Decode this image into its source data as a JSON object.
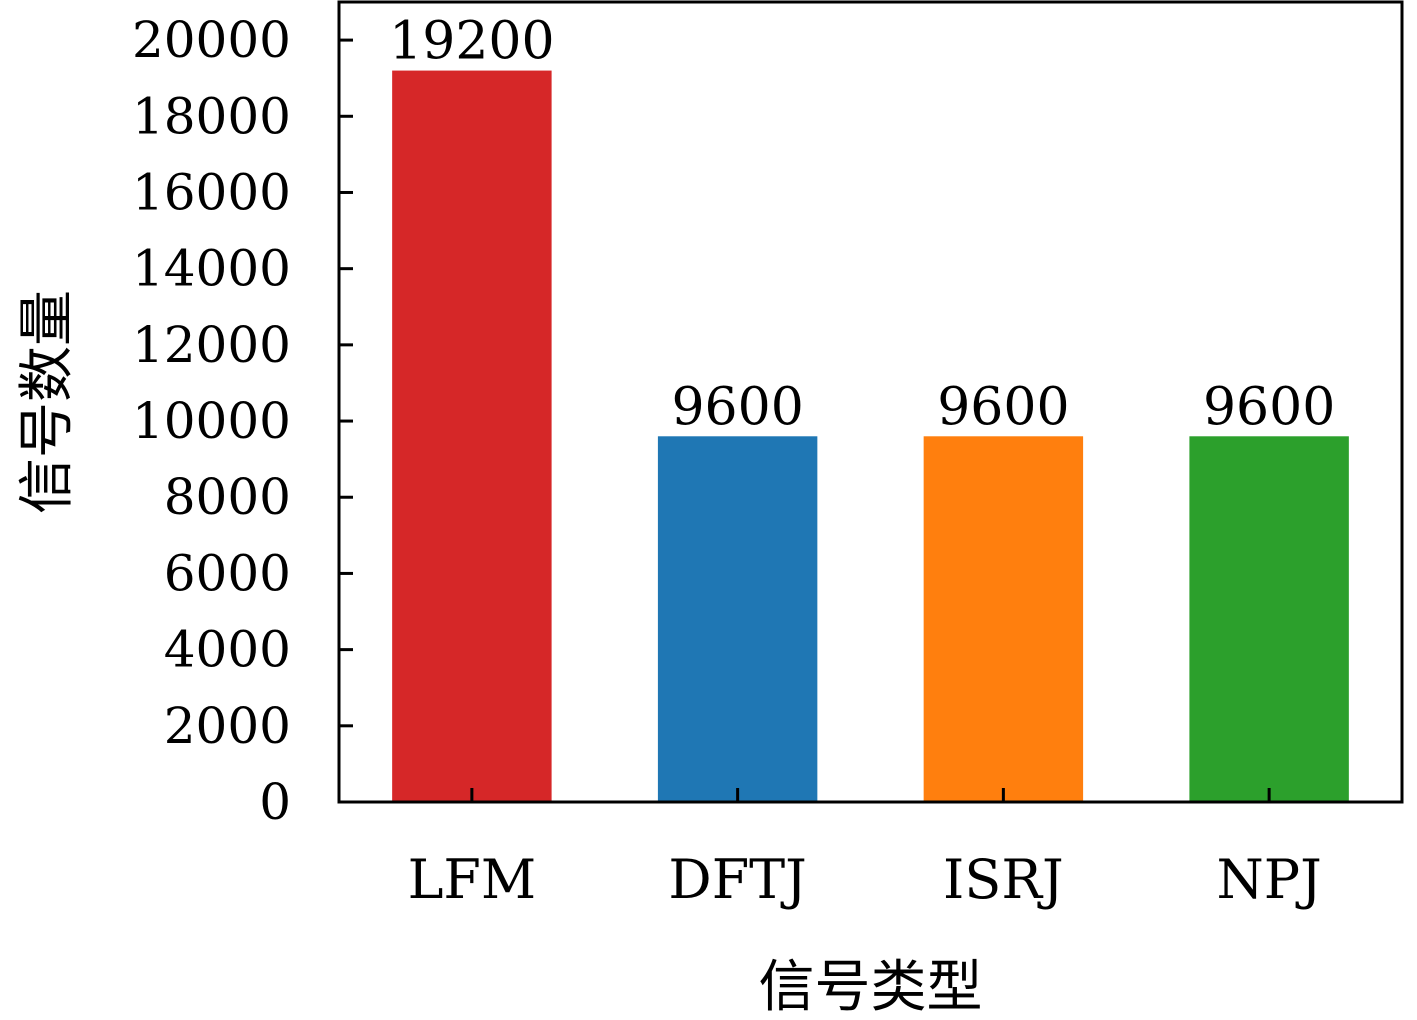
{
  "chart_data": {
    "type": "bar",
    "title": "",
    "xlabel": "信号类型",
    "ylabel": "信号数量",
    "categories": [
      "LFM",
      "DFTJ",
      "ISRJ",
      "NPJ"
    ],
    "values": [
      19200,
      9600,
      9600,
      9600
    ],
    "value_labels": [
      "19200",
      "9600",
      "9600",
      "9600"
    ],
    "colors": [
      "#d62728",
      "#1f77b4",
      "#ff7f0e",
      "#2ca02c"
    ],
    "ylim": [
      0,
      21000
    ],
    "yticks": [
      0,
      2000,
      4000,
      6000,
      8000,
      10000,
      12000,
      14000,
      16000,
      18000,
      20000
    ],
    "ytick_labels": [
      "0",
      "2000",
      "4000",
      "6000",
      "8000",
      "10000",
      "12000",
      "14000",
      "16000",
      "18000",
      "20000"
    ],
    "grid": false,
    "legend": "none"
  }
}
